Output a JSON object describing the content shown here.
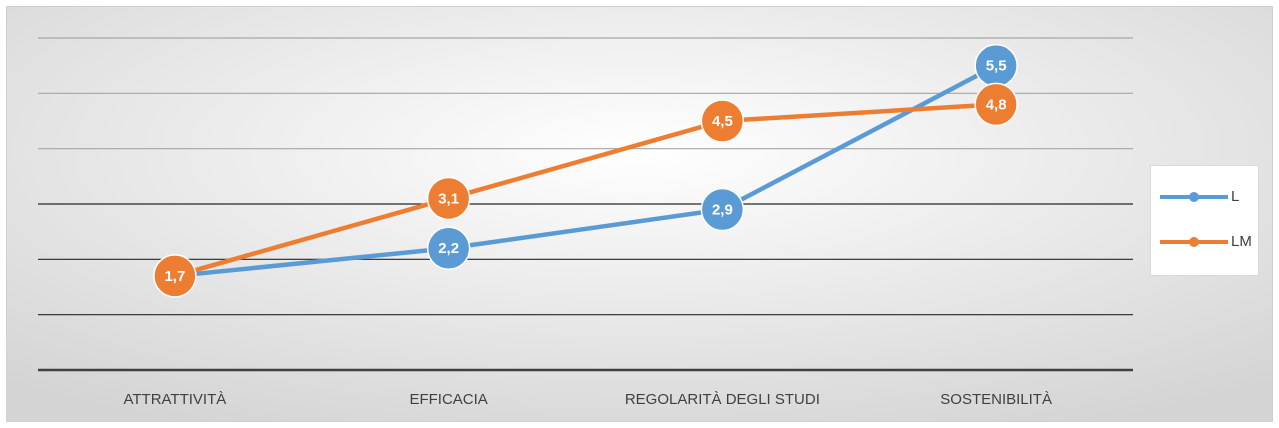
{
  "chart_data": {
    "type": "line",
    "categories": [
      "ATTRATTIVITÀ",
      "EFFICACIA",
      "REGOLARITÀ DEGLI STUDI",
      "SOSTENIBILITÀ"
    ],
    "series": [
      {
        "name": "L",
        "color": "#5b9bd5",
        "values": [
          1.7,
          2.2,
          2.9,
          5.5
        ],
        "value_labels": [
          "1,7",
          "2,2",
          "2,9",
          "5,5"
        ]
      },
      {
        "name": "LM",
        "color": "#ed7d31",
        "values": [
          1.7,
          3.1,
          4.5,
          4.8
        ],
        "value_labels": [
          "1,7",
          "3,1",
          "4,5",
          "4,8"
        ]
      }
    ],
    "ylim": [
      0,
      6
    ],
    "yticks": [
      0,
      1,
      2,
      3,
      4,
      5,
      6
    ],
    "grid": true,
    "legend": "right"
  }
}
